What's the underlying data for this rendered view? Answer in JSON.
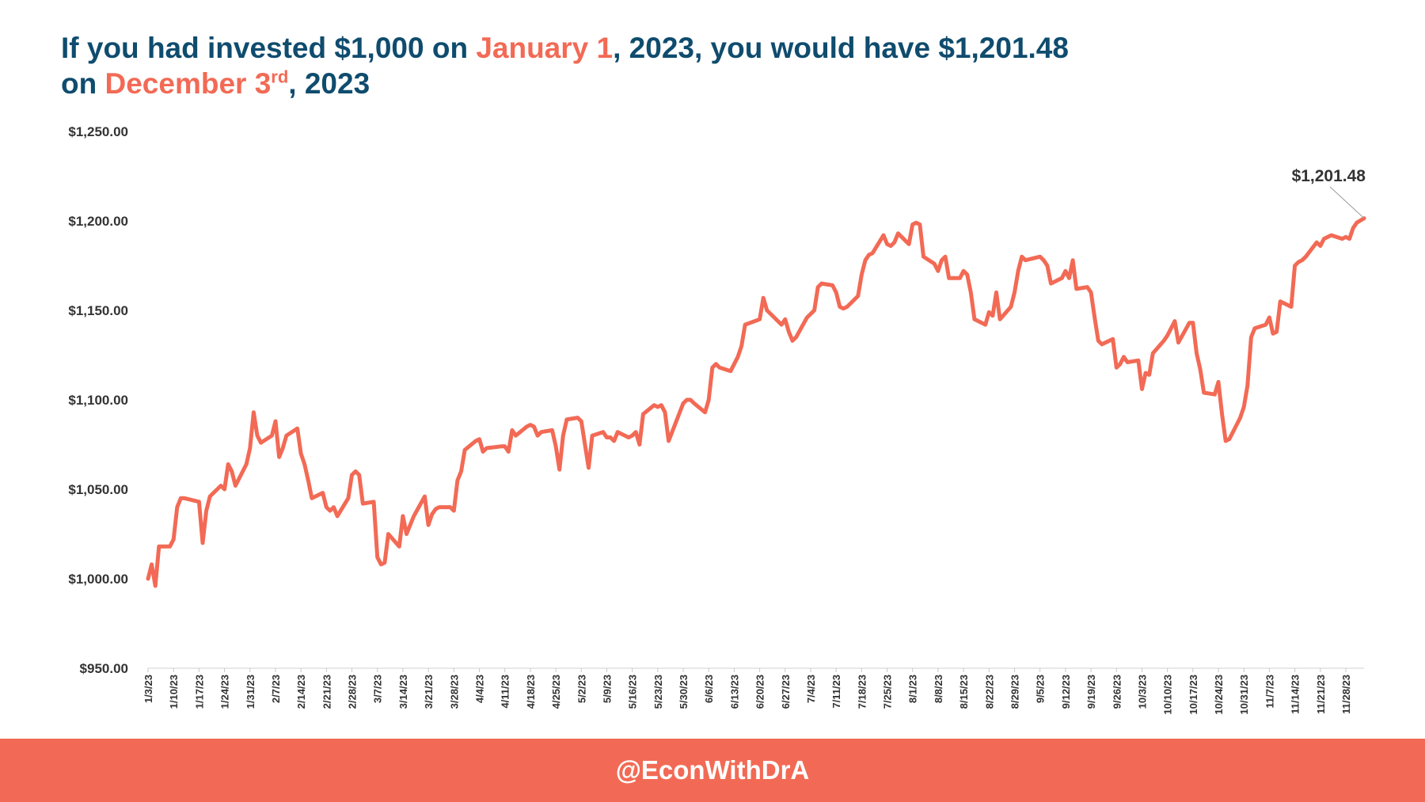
{
  "title": {
    "prefix": "If you had invested $1,000 on ",
    "date1_a": "January",
    "date1_b": "1",
    "mid": ", 2023, you would have $1,201.48",
    "line2_on": "on ",
    "date2": "December 3",
    "date2_sup": "rd",
    "year_end": ", 2023"
  },
  "footer": {
    "handle": "@EconWithDrA"
  },
  "colors": {
    "line": "#f26a55",
    "title": "#0f4c6e",
    "accent": "#f26a55",
    "axis_text": "#333333"
  },
  "chart_data": {
    "type": "line",
    "ylim": [
      950,
      1250
    ],
    "y_ticks": [
      950,
      1000,
      1050,
      1100,
      1150,
      1200,
      1250
    ],
    "y_tick_labels": [
      "$950.00",
      "$1,000.00",
      "$1,050.00",
      "$1,100.00",
      "$1,150.00",
      "$1,200.00",
      "$1,250.00"
    ],
    "x_tick_labels": [
      "1/3/23",
      "1/10/23",
      "1/17/23",
      "1/24/23",
      "1/31/23",
      "2/7/23",
      "2/14/23",
      "2/21/23",
      "2/28/23",
      "3/7/23",
      "3/14/23",
      "3/21/23",
      "3/28/23",
      "4/4/23",
      "4/11/23",
      "4/18/23",
      "4/25/23",
      "5/2/23",
      "5/9/23",
      "5/16/23",
      "5/23/23",
      "5/30/23",
      "6/6/23",
      "6/13/23",
      "6/20/23",
      "6/27/23",
      "7/4/23",
      "7/11/23",
      "7/18/23",
      "7/25/23",
      "8/1/23",
      "8/8/23",
      "8/15/23",
      "8/22/23",
      "8/29/23",
      "9/5/23",
      "9/12/23",
      "9/19/23",
      "9/26/23",
      "10/3/23",
      "10/10/23",
      "10/17/23",
      "10/24/23",
      "10/31/23",
      "11/7/23",
      "11/14/23",
      "11/21/23",
      "11/28/23"
    ],
    "x_start": "2023-01-03",
    "x_end": "2023-12-03",
    "annotation": {
      "text": "$1,201.48",
      "date": "2023-12-03",
      "value": 1201.48
    },
    "series": [
      {
        "points": [
          [
            "2023-01-03",
            1000
          ],
          [
            "2023-01-04",
            1008
          ],
          [
            "2023-01-05",
            996
          ],
          [
            "2023-01-06",
            1018
          ],
          [
            "2023-01-09",
            1018
          ],
          [
            "2023-01-10",
            1022
          ],
          [
            "2023-01-11",
            1040
          ],
          [
            "2023-01-12",
            1045
          ],
          [
            "2023-01-13",
            1045
          ],
          [
            "2023-01-17",
            1043
          ],
          [
            "2023-01-18",
            1020
          ],
          [
            "2023-01-19",
            1038
          ],
          [
            "2023-01-20",
            1046
          ],
          [
            "2023-01-23",
            1052
          ],
          [
            "2023-01-24",
            1050
          ],
          [
            "2023-01-25",
            1064
          ],
          [
            "2023-01-26",
            1060
          ],
          [
            "2023-01-27",
            1052
          ],
          [
            "2023-01-30",
            1064
          ],
          [
            "2023-01-31",
            1073
          ],
          [
            "2023-02-01",
            1093
          ],
          [
            "2023-02-02",
            1080
          ],
          [
            "2023-02-03",
            1076
          ],
          [
            "2023-02-06",
            1080
          ],
          [
            "2023-02-07",
            1088
          ],
          [
            "2023-02-08",
            1068
          ],
          [
            "2023-02-09",
            1073
          ],
          [
            "2023-02-10",
            1080
          ],
          [
            "2023-02-13",
            1084
          ],
          [
            "2023-02-14",
            1070
          ],
          [
            "2023-02-15",
            1064
          ],
          [
            "2023-02-16",
            1055
          ],
          [
            "2023-02-17",
            1045
          ],
          [
            "2023-02-20",
            1048
          ],
          [
            "2023-02-21",
            1040
          ],
          [
            "2023-02-22",
            1038
          ],
          [
            "2023-02-23",
            1040
          ],
          [
            "2023-02-24",
            1035
          ],
          [
            "2023-02-27",
            1045
          ],
          [
            "2023-02-28",
            1058
          ],
          [
            "2023-03-01",
            1060
          ],
          [
            "2023-03-02",
            1058
          ],
          [
            "2023-03-03",
            1042
          ],
          [
            "2023-03-06",
            1043
          ],
          [
            "2023-03-07",
            1012
          ],
          [
            "2023-03-08",
            1008
          ],
          [
            "2023-03-09",
            1009
          ],
          [
            "2023-03-10",
            1025
          ],
          [
            "2023-03-13",
            1018
          ],
          [
            "2023-03-14",
            1035
          ],
          [
            "2023-03-15",
            1025
          ],
          [
            "2023-03-16",
            1030
          ],
          [
            "2023-03-17",
            1035
          ],
          [
            "2023-03-20",
            1046
          ],
          [
            "2023-03-21",
            1030
          ],
          [
            "2023-03-22",
            1036
          ],
          [
            "2023-03-23",
            1039
          ],
          [
            "2023-03-24",
            1040
          ],
          [
            "2023-03-27",
            1040
          ],
          [
            "2023-03-28",
            1038
          ],
          [
            "2023-03-29",
            1055
          ],
          [
            "2023-03-30",
            1060
          ],
          [
            "2023-03-31",
            1072
          ],
          [
            "2023-04-03",
            1077
          ],
          [
            "2023-04-04",
            1078
          ],
          [
            "2023-04-05",
            1071
          ],
          [
            "2023-04-06",
            1073
          ],
          [
            "2023-04-10",
            1074
          ],
          [
            "2023-04-11",
            1074
          ],
          [
            "2023-04-12",
            1071
          ],
          [
            "2023-04-13",
            1083
          ],
          [
            "2023-04-14",
            1080
          ],
          [
            "2023-04-17",
            1085
          ],
          [
            "2023-04-18",
            1086
          ],
          [
            "2023-04-19",
            1085
          ],
          [
            "2023-04-20",
            1080
          ],
          [
            "2023-04-21",
            1082
          ],
          [
            "2023-04-24",
            1083
          ],
          [
            "2023-04-25",
            1074
          ],
          [
            "2023-04-26",
            1061
          ],
          [
            "2023-04-27",
            1080
          ],
          [
            "2023-04-28",
            1089
          ],
          [
            "2023-05-01",
            1090
          ],
          [
            "2023-05-02",
            1088
          ],
          [
            "2023-05-03",
            1075
          ],
          [
            "2023-05-04",
            1062
          ],
          [
            "2023-05-05",
            1080
          ],
          [
            "2023-05-08",
            1082
          ],
          [
            "2023-05-09",
            1079
          ],
          [
            "2023-05-10",
            1079
          ],
          [
            "2023-05-11",
            1077
          ],
          [
            "2023-05-12",
            1082
          ],
          [
            "2023-05-15",
            1079
          ],
          [
            "2023-05-16",
            1080
          ],
          [
            "2023-05-17",
            1082
          ],
          [
            "2023-05-18",
            1075
          ],
          [
            "2023-05-19",
            1092
          ],
          [
            "2023-05-22",
            1097
          ],
          [
            "2023-05-23",
            1096
          ],
          [
            "2023-05-24",
            1097
          ],
          [
            "2023-05-25",
            1093
          ],
          [
            "2023-05-26",
            1077
          ],
          [
            "2023-05-30",
            1098
          ],
          [
            "2023-05-31",
            1100
          ],
          [
            "2023-06-01",
            1100
          ],
          [
            "2023-06-02",
            1098
          ],
          [
            "2023-06-05",
            1093
          ],
          [
            "2023-06-06",
            1100
          ],
          [
            "2023-06-07",
            1118
          ],
          [
            "2023-06-08",
            1120
          ],
          [
            "2023-06-09",
            1118
          ],
          [
            "2023-06-12",
            1116
          ],
          [
            "2023-06-13",
            1120
          ],
          [
            "2023-06-14",
            1124
          ],
          [
            "2023-06-15",
            1130
          ],
          [
            "2023-06-16",
            1142
          ],
          [
            "2023-06-20",
            1145
          ],
          [
            "2023-06-21",
            1157
          ],
          [
            "2023-06-22",
            1150
          ],
          [
            "2023-06-23",
            1148
          ],
          [
            "2023-06-26",
            1142
          ],
          [
            "2023-06-27",
            1145
          ],
          [
            "2023-06-28",
            1138
          ],
          [
            "2023-06-29",
            1133
          ],
          [
            "2023-06-30",
            1135
          ],
          [
            "2023-07-03",
            1146
          ],
          [
            "2023-07-05",
            1150
          ],
          [
            "2023-07-06",
            1163
          ],
          [
            "2023-07-07",
            1165
          ],
          [
            "2023-07-10",
            1164
          ],
          [
            "2023-07-11",
            1160
          ],
          [
            "2023-07-12",
            1152
          ],
          [
            "2023-07-13",
            1151
          ],
          [
            "2023-07-14",
            1152
          ],
          [
            "2023-07-17",
            1158
          ],
          [
            "2023-07-18",
            1170
          ],
          [
            "2023-07-19",
            1178
          ],
          [
            "2023-07-20",
            1181
          ],
          [
            "2023-07-21",
            1182
          ],
          [
            "2023-07-24",
            1192
          ],
          [
            "2023-07-25",
            1187
          ],
          [
            "2023-07-26",
            1186
          ],
          [
            "2023-07-27",
            1188
          ],
          [
            "2023-07-28",
            1193
          ],
          [
            "2023-07-31",
            1187
          ],
          [
            "2023-08-01",
            1198
          ],
          [
            "2023-08-02",
            1199
          ],
          [
            "2023-08-03",
            1198
          ],
          [
            "2023-08-04",
            1180
          ],
          [
            "2023-08-07",
            1176
          ],
          [
            "2023-08-08",
            1172
          ],
          [
            "2023-08-09",
            1178
          ],
          [
            "2023-08-10",
            1180
          ],
          [
            "2023-08-11",
            1168
          ],
          [
            "2023-08-14",
            1168
          ],
          [
            "2023-08-15",
            1172
          ],
          [
            "2023-08-16",
            1170
          ],
          [
            "2023-08-17",
            1160
          ],
          [
            "2023-08-18",
            1145
          ],
          [
            "2023-08-21",
            1142
          ],
          [
            "2023-08-22",
            1149
          ],
          [
            "2023-08-23",
            1147
          ],
          [
            "2023-08-24",
            1160
          ],
          [
            "2023-08-25",
            1145
          ],
          [
            "2023-08-28",
            1152
          ],
          [
            "2023-08-29",
            1160
          ],
          [
            "2023-08-30",
            1172
          ],
          [
            "2023-08-31",
            1180
          ],
          [
            "2023-09-01",
            1178
          ],
          [
            "2023-09-05",
            1180
          ],
          [
            "2023-09-06",
            1178
          ],
          [
            "2023-09-07",
            1175
          ],
          [
            "2023-09-08",
            1165
          ],
          [
            "2023-09-11",
            1168
          ],
          [
            "2023-09-12",
            1172
          ],
          [
            "2023-09-13",
            1168
          ],
          [
            "2023-09-14",
            1178
          ],
          [
            "2023-09-15",
            1162
          ],
          [
            "2023-09-18",
            1163
          ],
          [
            "2023-09-19",
            1160
          ],
          [
            "2023-09-20",
            1146
          ],
          [
            "2023-09-21",
            1133
          ],
          [
            "2023-09-22",
            1131
          ],
          [
            "2023-09-25",
            1134
          ],
          [
            "2023-09-26",
            1118
          ],
          [
            "2023-09-27",
            1120
          ],
          [
            "2023-09-28",
            1124
          ],
          [
            "2023-09-29",
            1121
          ],
          [
            "2023-10-02",
            1122
          ],
          [
            "2023-10-03",
            1106
          ],
          [
            "2023-10-04",
            1115
          ],
          [
            "2023-10-05",
            1114
          ],
          [
            "2023-10-06",
            1126
          ],
          [
            "2023-10-09",
            1133
          ],
          [
            "2023-10-10",
            1136
          ],
          [
            "2023-10-11",
            1140
          ],
          [
            "2023-10-12",
            1144
          ],
          [
            "2023-10-13",
            1132
          ],
          [
            "2023-10-16",
            1143
          ],
          [
            "2023-10-17",
            1143
          ],
          [
            "2023-10-18",
            1126
          ],
          [
            "2023-10-19",
            1117
          ],
          [
            "2023-10-20",
            1104
          ],
          [
            "2023-10-23",
            1103
          ],
          [
            "2023-10-24",
            1110
          ],
          [
            "2023-10-25",
            1092
          ],
          [
            "2023-10-26",
            1077
          ],
          [
            "2023-10-27",
            1078
          ],
          [
            "2023-10-30",
            1090
          ],
          [
            "2023-10-31",
            1096
          ],
          [
            "2023-11-01",
            1108
          ],
          [
            "2023-11-02",
            1135
          ],
          [
            "2023-11-03",
            1140
          ],
          [
            "2023-11-06",
            1142
          ],
          [
            "2023-11-07",
            1146
          ],
          [
            "2023-11-08",
            1137
          ],
          [
            "2023-11-09",
            1138
          ],
          [
            "2023-11-10",
            1155
          ],
          [
            "2023-11-13",
            1152
          ],
          [
            "2023-11-14",
            1175
          ],
          [
            "2023-11-15",
            1177
          ],
          [
            "2023-11-16",
            1178
          ],
          [
            "2023-11-17",
            1180
          ],
          [
            "2023-11-20",
            1188
          ],
          [
            "2023-11-21",
            1186
          ],
          [
            "2023-11-22",
            1190
          ],
          [
            "2023-11-24",
            1192
          ],
          [
            "2023-11-27",
            1190
          ],
          [
            "2023-11-28",
            1191
          ],
          [
            "2023-11-29",
            1190
          ],
          [
            "2023-11-30",
            1196
          ],
          [
            "2023-12-01",
            1199
          ],
          [
            "2023-12-03",
            1201.48
          ]
        ]
      }
    ]
  }
}
